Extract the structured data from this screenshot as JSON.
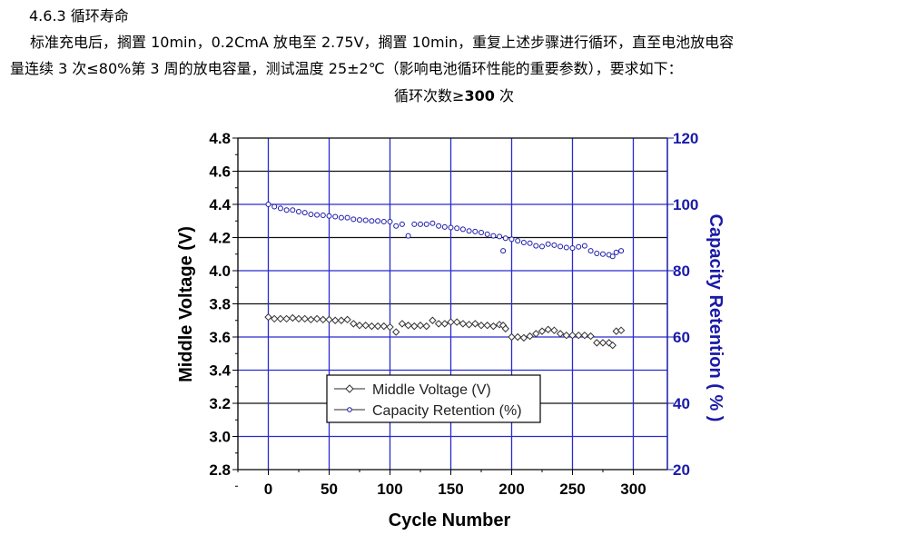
{
  "document": {
    "heading": "4.6.3  循环寿命",
    "paragraph_line1": "标准充电后，搁置 10min，0.2CmA 放电至 2.75V，搁置 10min，重复上述步骤进行循环，直至电池放电容",
    "paragraph_line2": "量连续 3 次≤80%第 3 周的放电容量，测试温度 25±2℃（影响电池循环性能的重要参数），要求如下：",
    "requirement_prefix": "循环次数≥",
    "requirement_value": "300",
    "requirement_suffix": " 次"
  },
  "chart_data": {
    "type": "scatter",
    "xlabel": "Cycle Number",
    "ylabel_left": "Middle Voltage (V)",
    "ylabel_right": "Capacity Retention ( % )",
    "xlim": [
      -25,
      328
    ],
    "ylim_left": [
      2.8,
      4.8
    ],
    "ylim_right": [
      20,
      120
    ],
    "xticks": [
      "0",
      "50",
      "100",
      "150",
      "200",
      "250",
      "300"
    ],
    "yticks_left": [
      "2.8",
      "3.0",
      "3.2",
      "3.4",
      "3.6",
      "3.8",
      "4.0",
      "4.2",
      "4.4",
      "4.6",
      "4.8"
    ],
    "yticks_right": [
      "20",
      "40",
      "60",
      "80",
      "100",
      "120"
    ],
    "grid": true,
    "legend_position": "lower-left",
    "colors": {
      "voltage": "#333333",
      "capacity": "#1a1aa8",
      "grid_blue": "#2a2ad0",
      "grid_black": "#111111",
      "right_axis": "#1a1aa8"
    },
    "x": [
      0,
      5,
      10,
      15,
      20,
      25,
      30,
      35,
      40,
      45,
      50,
      55,
      60,
      65,
      70,
      75,
      80,
      85,
      90,
      95,
      100,
      105,
      110,
      115,
      120,
      125,
      130,
      135,
      140,
      145,
      150,
      155,
      160,
      165,
      170,
      175,
      180,
      185,
      190,
      193,
      195,
      200,
      205,
      210,
      215,
      220,
      225,
      230,
      235,
      240,
      245,
      250,
      255,
      260,
      265,
      270,
      275,
      280,
      283,
      286,
      290
    ],
    "series": [
      {
        "name": "Middle Voltage (V)",
        "axis": "left",
        "marker": "diamond",
        "values": [
          3.72,
          3.71,
          3.71,
          3.71,
          3.715,
          3.71,
          3.71,
          3.705,
          3.71,
          3.705,
          3.705,
          3.7,
          3.7,
          3.705,
          3.68,
          3.67,
          3.67,
          3.665,
          3.665,
          3.665,
          3.66,
          3.63,
          3.68,
          3.67,
          3.665,
          3.67,
          3.665,
          3.7,
          3.68,
          3.68,
          3.69,
          3.69,
          3.68,
          3.675,
          3.68,
          3.67,
          3.67,
          3.665,
          3.675,
          3.67,
          3.65,
          3.6,
          3.6,
          3.595,
          3.605,
          3.62,
          3.635,
          3.645,
          3.64,
          3.62,
          3.61,
          3.61,
          3.61,
          3.61,
          3.605,
          3.565,
          3.565,
          3.565,
          3.55,
          3.635,
          3.64
        ]
      },
      {
        "name": "Capacity Retention (%)",
        "axis": "right",
        "marker": "circle",
        "values": [
          100,
          99.3,
          98.8,
          98.3,
          98.3,
          97.8,
          97.5,
          97,
          96.8,
          96.7,
          96.5,
          96.3,
          96,
          96,
          95.5,
          95.3,
          95.2,
          95,
          95,
          94.8,
          94.8,
          93.5,
          94,
          90.5,
          94,
          94,
          94,
          94.3,
          93.5,
          93.2,
          93,
          92.8,
          92.5,
          92,
          91.8,
          91.5,
          91,
          90.5,
          90.3,
          86,
          89.8,
          89.5,
          89,
          88.5,
          88.3,
          87.5,
          87.3,
          88,
          87.7,
          87.3,
          87,
          86.8,
          87.2,
          87.5,
          86,
          85.2,
          85,
          84.8,
          84.3,
          85.5,
          86
        ]
      }
    ]
  }
}
